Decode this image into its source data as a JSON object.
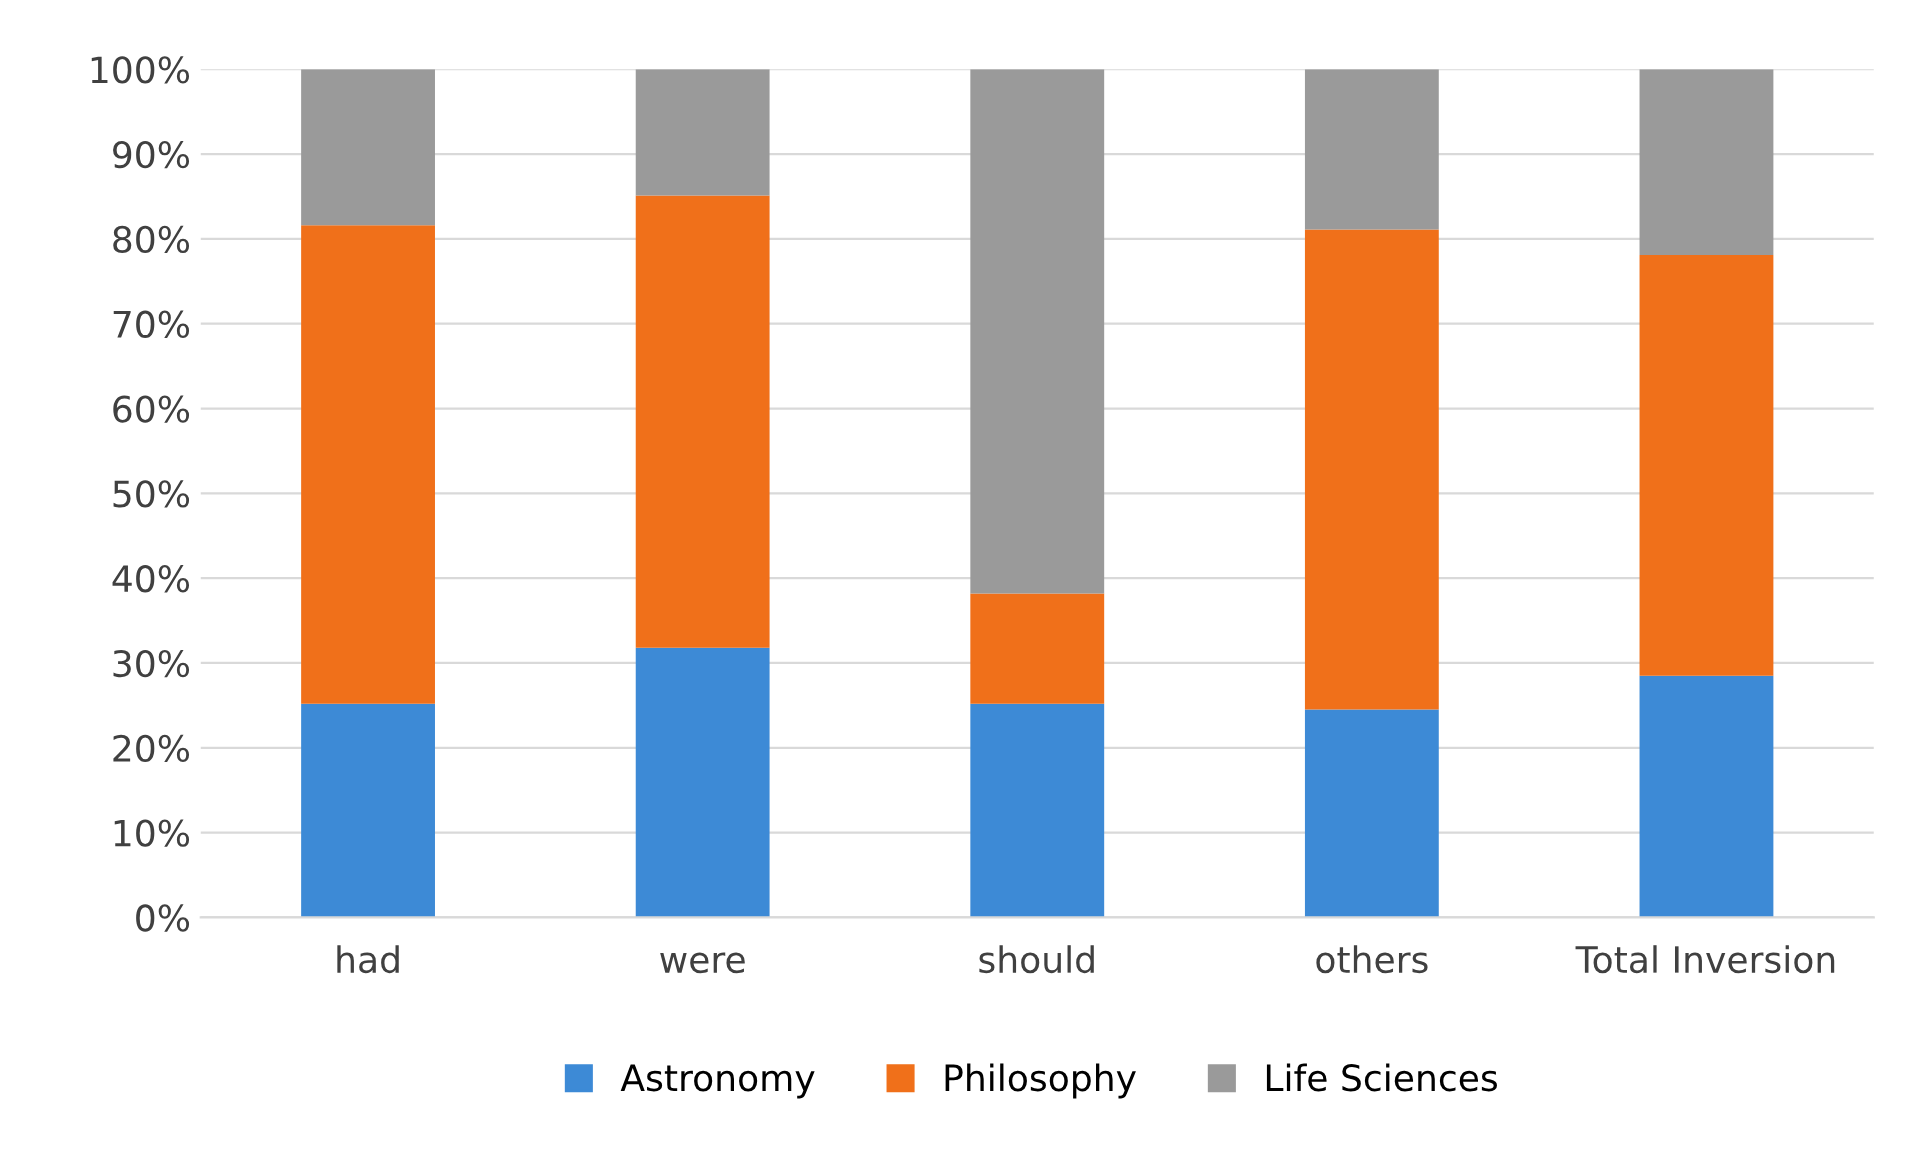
{
  "chart_data": {
    "type": "bar",
    "stacked": true,
    "categories": [
      "had",
      "were",
      "should",
      "others",
      "Total Inversion"
    ],
    "series": [
      {
        "name": "Astronomy",
        "color": "#3d8ad6",
        "values": [
          25.2,
          31.8,
          25.2,
          24.5,
          28.5
        ]
      },
      {
        "name": "Philosophy",
        "color": "#f0701a",
        "values": [
          56.4,
          53.3,
          13.0,
          56.6,
          49.6
        ]
      },
      {
        "name": "Life Sciences",
        "color": "#9a9a9a",
        "values": [
          18.4,
          14.9,
          61.8,
          18.9,
          21.9
        ]
      }
    ],
    "ylim": [
      0,
      100
    ],
    "yticks": [
      {
        "value": 0,
        "label": "0%"
      },
      {
        "value": 10,
        "label": "10%"
      },
      {
        "value": 20,
        "label": "20%"
      },
      {
        "value": 30,
        "label": "30%"
      },
      {
        "value": 40,
        "label": "40%"
      },
      {
        "value": 50,
        "label": "50%"
      },
      {
        "value": 60,
        "label": "60%"
      },
      {
        "value": 70,
        "label": "70%"
      },
      {
        "value": 80,
        "label": "80%"
      },
      {
        "value": 90,
        "label": "90%"
      },
      {
        "value": 100,
        "label": "100%"
      }
    ],
    "grid": "y",
    "legend": "bottom"
  }
}
